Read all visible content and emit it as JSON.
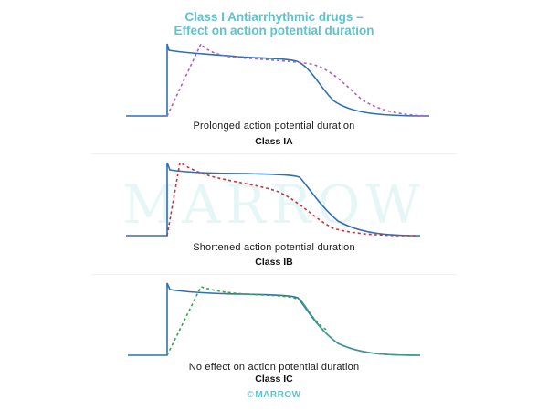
{
  "header": {
    "title_line1": "Class I Antiarrhythmic drugs –",
    "title_line2": "Effect on action potential duration"
  },
  "watermark": "MARROW",
  "panels": [
    {
      "caption": "Prolonged action potential duration",
      "label": "Class IA",
      "drug_color": "#b05cc8"
    },
    {
      "caption": "Shortened action potential duration",
      "label": "Class IB",
      "drug_color": "#c8333a"
    },
    {
      "caption": "No effect on action potential duration",
      "label": "Class IC",
      "drug_color": "#3aa24a"
    }
  ],
  "colors": {
    "baseline": "#2f6fb3",
    "title": "#5ec3cf"
  },
  "footer": {
    "logo_symbol": "©",
    "logo_text": "MARROW"
  }
}
